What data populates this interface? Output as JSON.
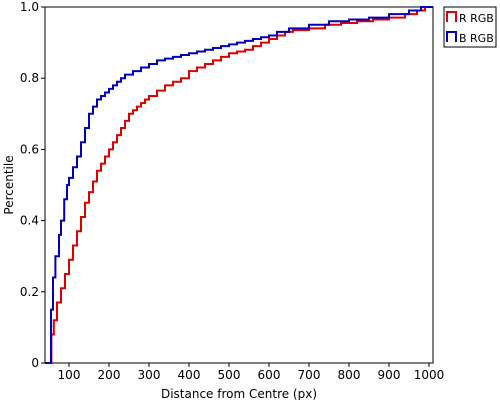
{
  "chart_data": {
    "type": "line",
    "step": true,
    "xlabel": "Distance from Centre (px)",
    "ylabel": "Percentile",
    "xlim": [
      40,
      1010
    ],
    "ylim": [
      0,
      1.0
    ],
    "xticks": [
      100,
      200,
      300,
      400,
      500,
      600,
      700,
      800,
      900,
      1000
    ],
    "xtick_labels": [
      "100",
      "200",
      "300",
      "400",
      "500",
      "600",
      "700",
      "800",
      "900",
      "1000"
    ],
    "yticks": [
      0,
      0.2,
      0.4,
      0.6,
      0.8,
      1.0
    ],
    "ytick_labels": [
      "0",
      "0.2",
      "0.4",
      "0.6",
      "0.8",
      "1.0"
    ],
    "grid": false,
    "legend_position": "outside-top-right",
    "series": [
      {
        "name": "R RGB",
        "color": "#dd0000",
        "x": [
          40,
          56,
          62,
          70,
          80,
          90,
          100,
          110,
          120,
          130,
          140,
          150,
          160,
          170,
          180,
          190,
          200,
          210,
          220,
          230,
          240,
          250,
          260,
          270,
          280,
          290,
          300,
          320,
          340,
          360,
          380,
          400,
          420,
          440,
          460,
          480,
          500,
          520,
          540,
          560,
          580,
          600,
          620,
          640,
          660,
          700,
          740,
          780,
          820,
          860,
          900,
          940,
          970,
          990,
          1010
        ],
        "y": [
          0,
          0.08,
          0.12,
          0.17,
          0.21,
          0.25,
          0.29,
          0.33,
          0.37,
          0.41,
          0.45,
          0.48,
          0.51,
          0.54,
          0.56,
          0.58,
          0.6,
          0.62,
          0.64,
          0.66,
          0.68,
          0.7,
          0.71,
          0.72,
          0.73,
          0.74,
          0.75,
          0.765,
          0.78,
          0.79,
          0.8,
          0.82,
          0.83,
          0.84,
          0.85,
          0.86,
          0.87,
          0.875,
          0.88,
          0.89,
          0.9,
          0.91,
          0.92,
          0.93,
          0.935,
          0.94,
          0.95,
          0.955,
          0.96,
          0.965,
          0.97,
          0.98,
          0.99,
          1.0,
          1.0
        ]
      },
      {
        "name": "B RGB",
        "color": "#0000bb",
        "x": [
          40,
          55,
          60,
          66,
          75,
          80,
          88,
          95,
          100,
          110,
          120,
          130,
          140,
          150,
          160,
          170,
          180,
          190,
          200,
          210,
          220,
          230,
          240,
          260,
          280,
          300,
          320,
          340,
          360,
          380,
          400,
          420,
          440,
          460,
          480,
          500,
          520,
          540,
          560,
          580,
          600,
          620,
          650,
          700,
          750,
          800,
          850,
          900,
          950,
          980,
          1010
        ],
        "y": [
          0,
          0.15,
          0.24,
          0.3,
          0.36,
          0.4,
          0.46,
          0.5,
          0.52,
          0.55,
          0.58,
          0.62,
          0.66,
          0.7,
          0.72,
          0.74,
          0.75,
          0.76,
          0.77,
          0.78,
          0.79,
          0.8,
          0.81,
          0.82,
          0.83,
          0.84,
          0.85,
          0.855,
          0.86,
          0.865,
          0.87,
          0.875,
          0.88,
          0.885,
          0.89,
          0.895,
          0.9,
          0.905,
          0.91,
          0.915,
          0.92,
          0.93,
          0.94,
          0.95,
          0.96,
          0.965,
          0.97,
          0.98,
          0.99,
          1.0,
          1.0
        ]
      }
    ]
  }
}
